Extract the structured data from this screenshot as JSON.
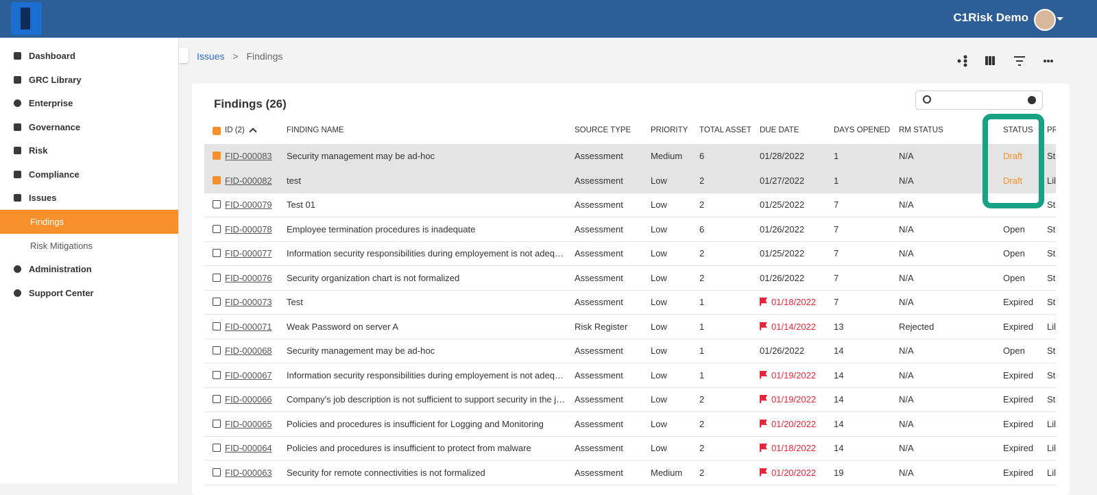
{
  "header": {
    "brand": "C1Risk Demo"
  },
  "nav": [
    "Dashboard",
    "GRC Library",
    "Enterprise",
    "Governance",
    "Risk",
    "Compliance",
    "Issues",
    "Findings",
    "Risk Mitigations",
    "Administration",
    "Support Center"
  ],
  "breadcrumb": {
    "parent": "Issues",
    "separator": ">",
    "current": "Findings"
  },
  "card": {
    "title": "Findings (26)"
  },
  "table": {
    "columns": [
      "ID (2)",
      "FINDING NAME",
      "SOURCE TYPE",
      "PRIORITY",
      "TOTAL ASSET",
      "DUE DATE",
      "DAYS OPENED",
      "RM STATUS",
      "STATUS",
      "PR"
    ],
    "rows": [
      {
        "id": "FID-000083",
        "name": "Security management may be ad-hoc",
        "source": "Assessment",
        "priority": "Medium",
        "assets": 6,
        "due": "01/28/2022",
        "overdue": false,
        "days": 1,
        "rm": "N/A",
        "status": "Draft",
        "pr": "St",
        "selected": true
      },
      {
        "id": "FID-000082",
        "name": "test",
        "source": "Assessment",
        "priority": "Low",
        "assets": 2,
        "due": "01/27/2022",
        "overdue": false,
        "days": 1,
        "rm": "N/A",
        "status": "Draft",
        "pr": "Lil",
        "selected": true
      },
      {
        "id": "FID-000079",
        "name": "Test 01",
        "source": "Assessment",
        "priority": "Low",
        "assets": 2,
        "due": "01/25/2022",
        "overdue": false,
        "days": 7,
        "rm": "N/A",
        "status": null,
        "pr": "St",
        "selected": false
      },
      {
        "id": "FID-000078",
        "name": "Employee termination procedures is inadequate",
        "source": "Assessment",
        "priority": "Low",
        "assets": 6,
        "due": "01/26/2022",
        "overdue": false,
        "days": 7,
        "rm": "N/A",
        "status": "Open",
        "pr": "St",
        "selected": false
      },
      {
        "id": "FID-000077",
        "name": "Information security responsibilities during employement is not adeq…",
        "source": "Assessment",
        "priority": "Low",
        "assets": 2,
        "due": "01/25/2022",
        "overdue": false,
        "days": 7,
        "rm": "N/A",
        "status": "Open",
        "pr": "St",
        "selected": false
      },
      {
        "id": "FID-000076",
        "name": "Security organization chart is not formalized",
        "source": "Assessment",
        "priority": "Low",
        "assets": 2,
        "due": "01/26/2022",
        "overdue": false,
        "days": 7,
        "rm": "N/A",
        "status": "Open",
        "pr": "St",
        "selected": false
      },
      {
        "id": "FID-000073",
        "name": "Test",
        "source": "Assessment",
        "priority": "Low",
        "assets": 1,
        "due": "01/18/2022",
        "overdue": true,
        "days": 7,
        "rm": "N/A",
        "status": "Expired",
        "pr": "St",
        "selected": false
      },
      {
        "id": "FID-000071",
        "name": "Weak Password on server A",
        "source": "Risk Register",
        "priority": "Low",
        "assets": 1,
        "due": "01/14/2022",
        "overdue": true,
        "days": 13,
        "rm": "Rejected",
        "status": "Expired",
        "pr": "Lil",
        "selected": false
      },
      {
        "id": "FID-000068",
        "name": "Security management may be ad-hoc",
        "source": "Assessment",
        "priority": "Low",
        "assets": 1,
        "due": "01/26/2022",
        "overdue": false,
        "days": 14,
        "rm": "N/A",
        "status": "Open",
        "pr": "St",
        "selected": false
      },
      {
        "id": "FID-000067",
        "name": "Information security responsibilities during employement is not adeq…",
        "source": "Assessment",
        "priority": "Low",
        "assets": 1,
        "due": "01/19/2022",
        "overdue": true,
        "days": 14,
        "rm": "N/A",
        "status": "Expired",
        "pr": "St",
        "selected": false
      },
      {
        "id": "FID-000066",
        "name": "Company's job description is not sufficient to support security in the j…",
        "source": "Assessment",
        "priority": "Low",
        "assets": 2,
        "due": "01/19/2022",
        "overdue": true,
        "days": 14,
        "rm": "N/A",
        "status": "Expired",
        "pr": "St",
        "selected": false
      },
      {
        "id": "FID-000065",
        "name": "Policies and procedures is insufficient for Logging and Monitoring",
        "source": "Assessment",
        "priority": "Low",
        "assets": 2,
        "due": "01/20/2022",
        "overdue": true,
        "days": 14,
        "rm": "N/A",
        "status": "Expired",
        "pr": "Lil",
        "selected": false
      },
      {
        "id": "FID-000064",
        "name": "Policies and procedures is insufficient to protect from malware",
        "source": "Assessment",
        "priority": "Low",
        "assets": 2,
        "due": "01/18/2022",
        "overdue": true,
        "days": 14,
        "rm": "N/A",
        "status": "Expired",
        "pr": "Lil",
        "selected": false
      },
      {
        "id": "FID-000063",
        "name": "Security for remote connectivities is not formalized",
        "source": "Assessment",
        "priority": "Medium",
        "assets": 2,
        "due": "01/20/2022",
        "overdue": true,
        "days": 19,
        "rm": "N/A",
        "status": "Expired",
        "pr": "Lil",
        "selected": false
      }
    ]
  }
}
